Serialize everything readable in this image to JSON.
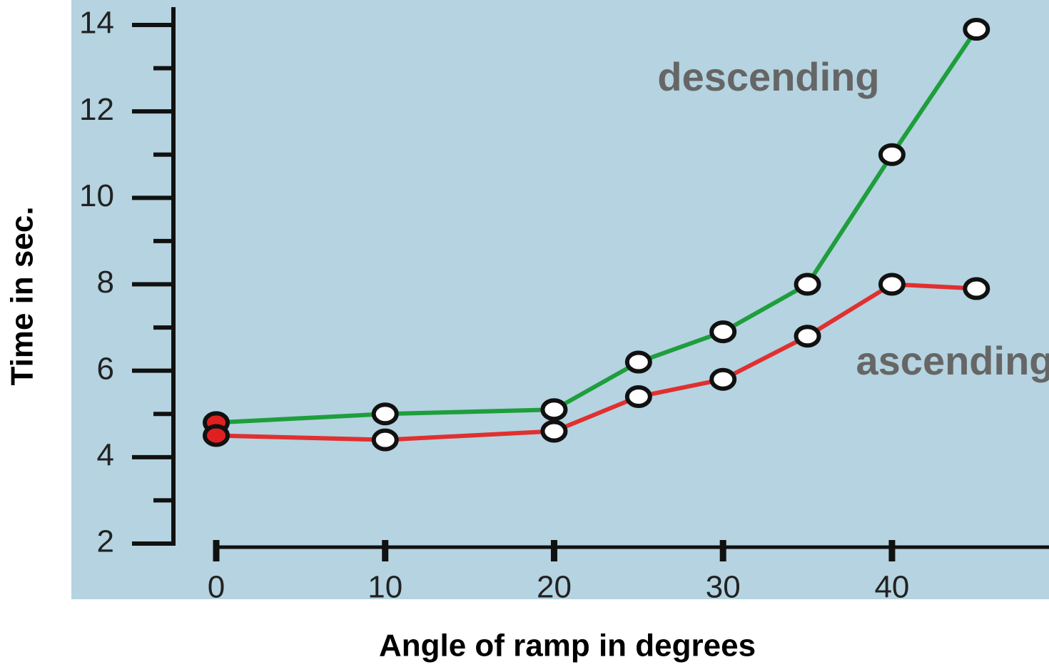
{
  "chart_data": {
    "type": "line",
    "x_label": "Angle of ramp in degrees",
    "y_label": "Time in sec.",
    "x": [
      0,
      10,
      20,
      25,
      30,
      35,
      40,
      45
    ],
    "series": [
      {
        "name": "descending",
        "color": "#1e9e3c",
        "values": [
          4.8,
          5.0,
          5.1,
          6.2,
          6.9,
          8.0,
          11.0,
          13.9
        ]
      },
      {
        "name": "ascending",
        "color": "#e03030",
        "values": [
          4.5,
          4.4,
          4.6,
          5.4,
          5.8,
          6.8,
          8.0,
          7.9
        ]
      }
    ],
    "xlim": [
      0,
      49
    ],
    "xticks": [
      0,
      10,
      20,
      30,
      40
    ],
    "ylim": [
      2,
      14
    ],
    "yticks": [
      2,
      4,
      6,
      8,
      10,
      12,
      14
    ],
    "yminorticks": [
      3,
      5,
      7,
      9,
      11,
      13
    ],
    "grid": false
  }
}
